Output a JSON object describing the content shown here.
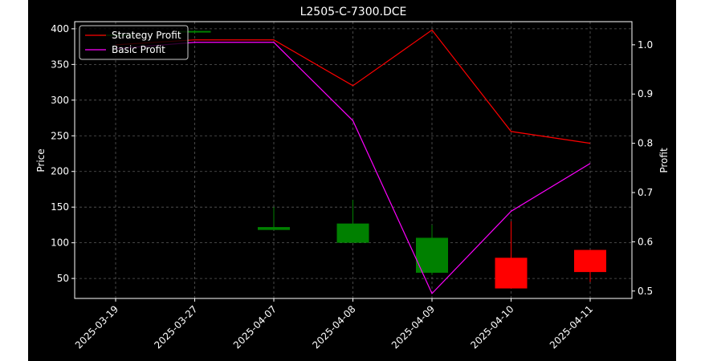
{
  "chart_data": {
    "type": "candlestick",
    "title": "L2505-C-7300.DCE",
    "xlabel": "",
    "ylabel": "Price",
    "y2label": "Profit",
    "categories": [
      "2025-03-19",
      "2025-03-27",
      "2025-04-07",
      "2025-04-08",
      "2025-04-09",
      "2025-04-10",
      "2025-04-11"
    ],
    "ylim": [
      22,
      410
    ],
    "y2lim": [
      0.485,
      1.047
    ],
    "yticks": [
      50,
      100,
      150,
      200,
      250,
      300,
      350,
      400
    ],
    "y2ticks": [
      0.5,
      0.6,
      0.7,
      0.8,
      0.9,
      1.0
    ],
    "grid": true,
    "legend": "top-left",
    "candles": [
      {
        "date": "2025-03-19",
        "open": 392,
        "high": 392,
        "low": 392,
        "close": 392
      },
      {
        "date": "2025-03-27",
        "open": 396,
        "high": 398,
        "low": 394,
        "close": 397
      },
      {
        "date": "2025-04-07",
        "open": 118,
        "high": 150,
        "low": 118,
        "close": 122
      },
      {
        "date": "2025-04-08",
        "open": 100,
        "high": 160,
        "low": 100,
        "close": 127
      },
      {
        "date": "2025-04-09",
        "open": 58,
        "high": 125,
        "low": 55,
        "close": 107
      },
      {
        "date": "2025-04-10",
        "open": 79,
        "high": 130,
        "low": 36,
        "close": 36
      },
      {
        "date": "2025-04-11",
        "open": 90,
        "high": 90,
        "low": 45,
        "close": 59
      }
    ],
    "series": [
      {
        "name": "Strategy Profit",
        "color": "#ff0000",
        "axis": "right",
        "values": [
          1.0,
          1.01,
          1.01,
          0.917,
          1.03,
          0.824,
          0.8
        ]
      },
      {
        "name": "Basic Profit",
        "color": "#ff00ff",
        "axis": "right",
        "values": [
          0.992,
          1.005,
          1.005,
          0.846,
          0.495,
          0.662,
          0.759
        ]
      }
    ],
    "colors": {
      "background": "#000000",
      "up": "#008000",
      "down": "#ff0000",
      "grid": "#5a5a5a",
      "text": "#ffffff"
    }
  }
}
